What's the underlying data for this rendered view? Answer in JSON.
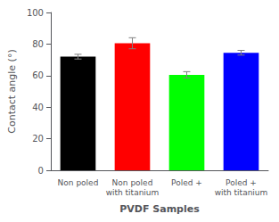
{
  "chart_data": {
    "type": "bar",
    "categories": [
      "Non poled",
      "Non poled\nwith titanium",
      "Poled +",
      "Poled +\nwith titanium"
    ],
    "values": [
      72,
      80.5,
      60.5,
      74.5
    ],
    "errors": [
      1.5,
      3.5,
      2.0,
      1.5
    ],
    "colors": [
      "black",
      "red",
      "lime",
      "blue"
    ],
    "xlabel": "PVDF Samples",
    "ylabel": "Contact angle (°)",
    "ylim": [
      0,
      100
    ],
    "yticks": [
      0,
      20,
      40,
      60,
      80,
      100
    ],
    "grid": false
  }
}
